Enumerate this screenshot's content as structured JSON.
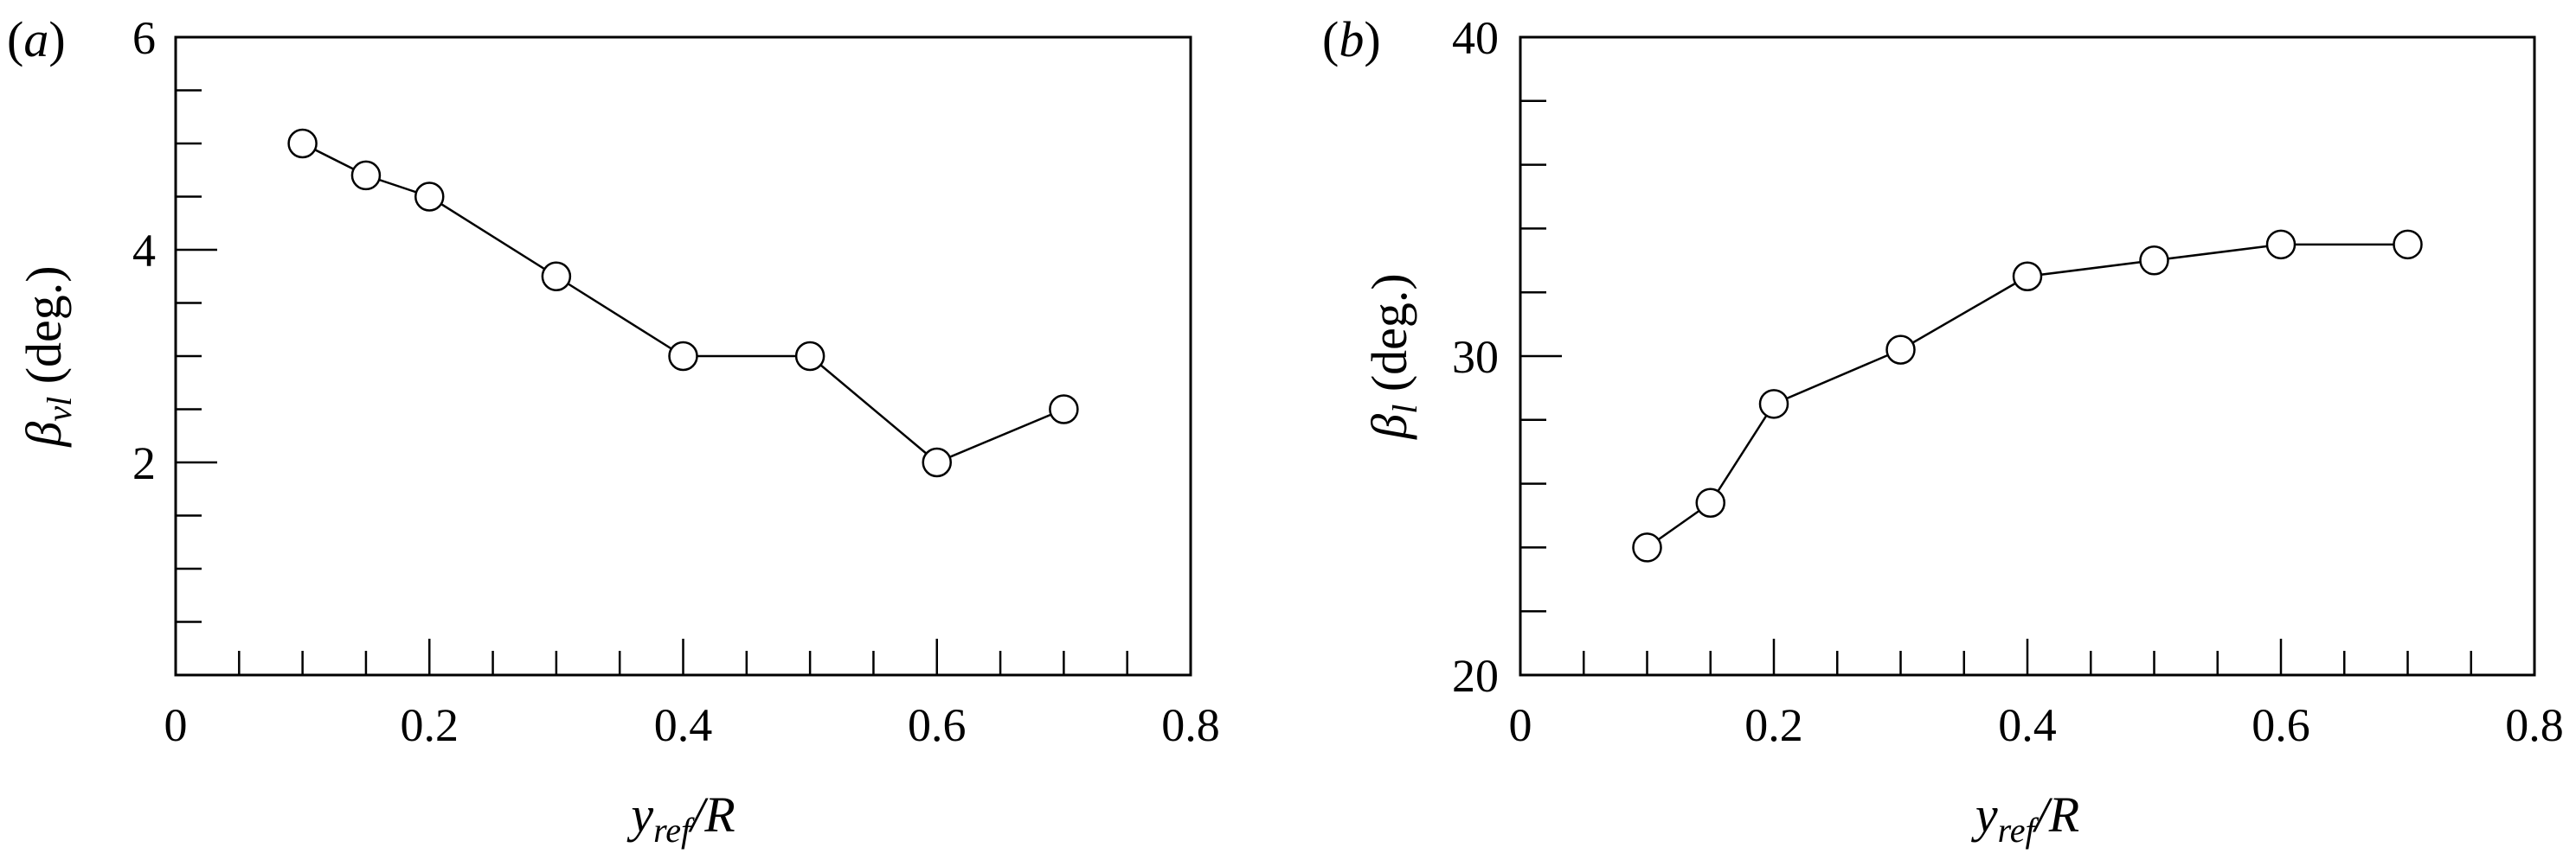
{
  "chart_data": [
    {
      "panel": "(a)",
      "type": "line",
      "title": "",
      "xlabel": "y_ref/R",
      "ylabel": "β_vl (deg.)",
      "xlim": [
        0,
        0.8
      ],
      "ylim": [
        0,
        6
      ],
      "xticks": [
        "0",
        "0.2",
        "0.4",
        "0.6",
        "0.8"
      ],
      "yticks": [
        "2",
        "4",
        "6"
      ],
      "x_minor_step": 0.05,
      "y_minor_step": 0.5,
      "grid": false,
      "marker": "open-circle",
      "x": [
        0.1,
        0.15,
        0.2,
        0.3,
        0.4,
        0.5,
        0.6,
        0.7
      ],
      "values": [
        5.0,
        4.7,
        4.5,
        3.75,
        3.0,
        3.0,
        2.0,
        2.5
      ]
    },
    {
      "panel": "(b)",
      "type": "line",
      "title": "",
      "xlabel": "y_ref/R",
      "ylabel": "β_l (deg.)",
      "xlim": [
        0,
        0.8
      ],
      "ylim": [
        20,
        40
      ],
      "xticks": [
        "0",
        "0.2",
        "0.4",
        "0.6",
        "0.8"
      ],
      "yticks": [
        "20",
        "30",
        "40"
      ],
      "x_minor_step": 0.05,
      "y_minor_step": 2,
      "grid": false,
      "marker": "open-circle",
      "x": [
        0.1,
        0.15,
        0.2,
        0.3,
        0.4,
        0.5,
        0.6,
        0.7
      ],
      "values": [
        24.0,
        25.4,
        28.5,
        30.2,
        32.5,
        33.0,
        33.5,
        33.5
      ]
    }
  ],
  "panels": [
    {
      "label": "(a)",
      "ylabel_symbol": "β",
      "ylabel_sub": "vl",
      "ylabel_unit": " (deg.)",
      "xlabel_main": "y",
      "xlabel_sub": "ref",
      "xlabel_tail": "/R"
    },
    {
      "label": "(b)",
      "ylabel_symbol": "β",
      "ylabel_sub": "l",
      "ylabel_unit": " (deg.)",
      "xlabel_main": "y",
      "xlabel_sub": "ref",
      "xlabel_tail": "/R"
    }
  ]
}
